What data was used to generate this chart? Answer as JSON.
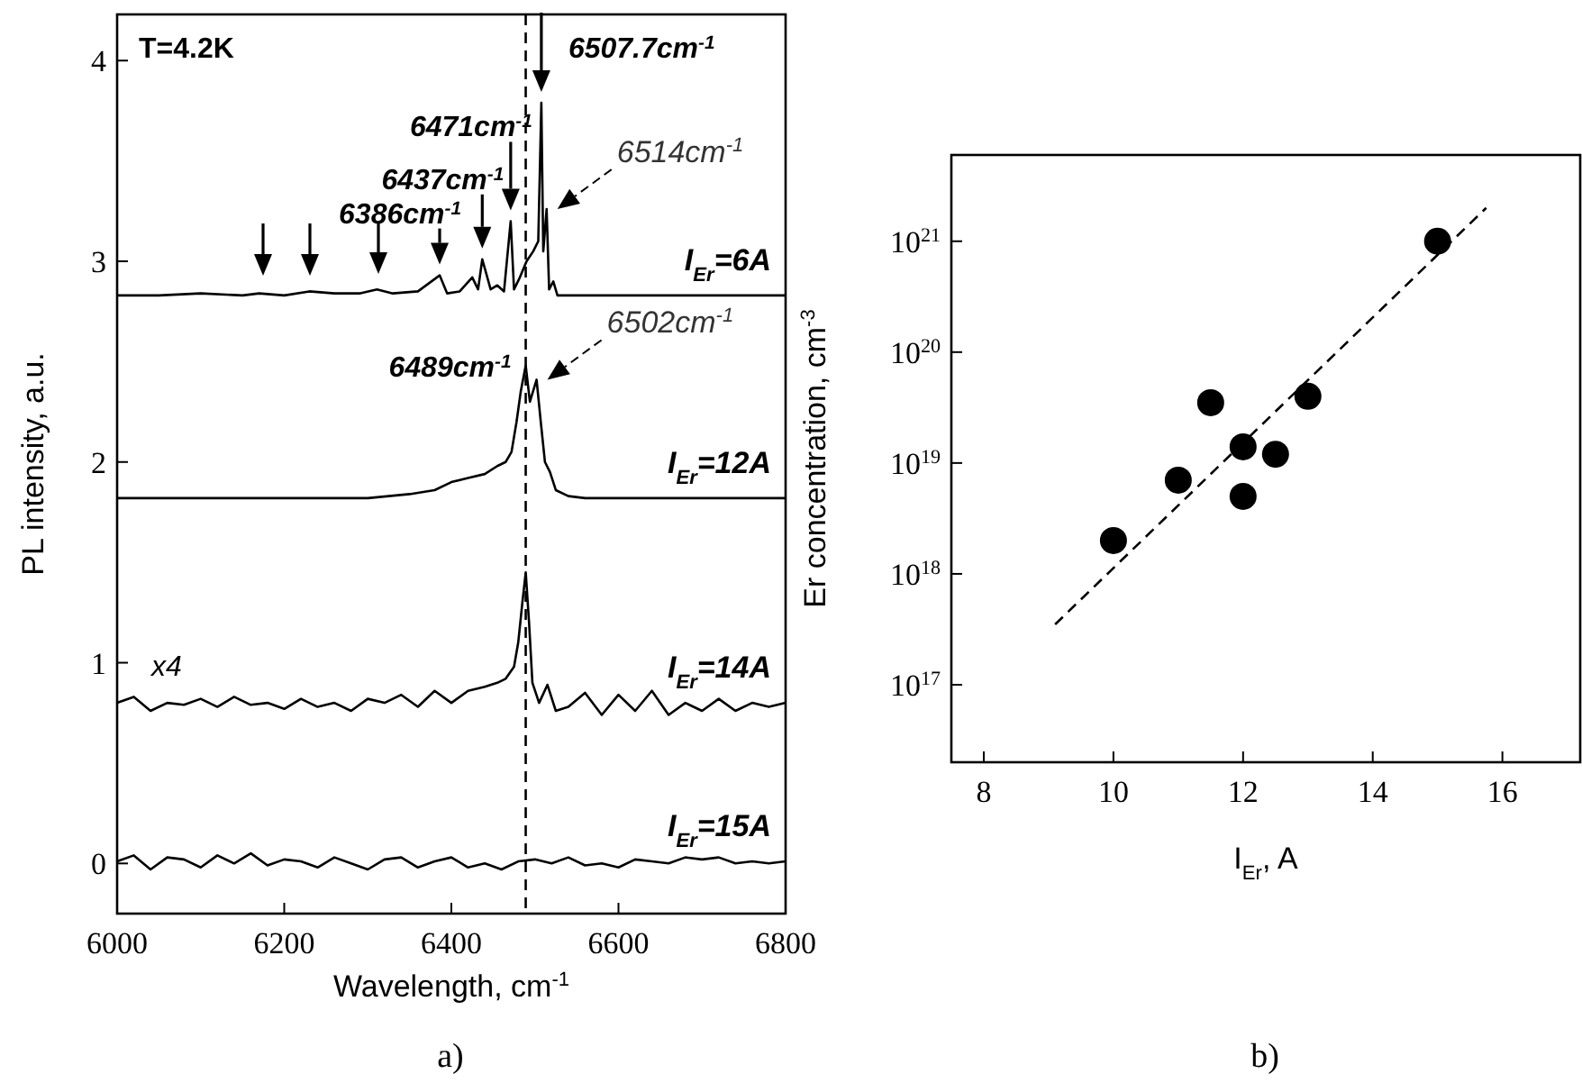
{
  "chart_data": [
    {
      "type": "line",
      "title": "a)",
      "xlabel": "Wavelength, cm$^{-1}$",
      "ylabel": "PL intensity, a.u.",
      "xlim": [
        6000,
        6800
      ],
      "ylim": [
        -0.25,
        4.23
      ],
      "xticks": [
        6000,
        6200,
        6400,
        6600,
        6800
      ],
      "yticks": [
        0,
        1,
        2,
        3,
        4
      ],
      "marker": "none",
      "line_style": "solid",
      "series": [
        {
          "name": "I$_{Er}$=6A",
          "color": "#000000",
          "x": [
            6000,
            6050,
            6100,
            6150,
            6170,
            6200,
            6230,
            6260,
            6290,
            6311,
            6330,
            6360,
            6386,
            6395,
            6410,
            6425,
            6432,
            6437,
            6447,
            6455,
            6463,
            6471,
            6475,
            6482,
            6490,
            6498,
            6504,
            6507.7,
            6510,
            6514,
            6517,
            6522,
            6527,
            6560,
            6600,
            6650,
            6700,
            6750,
            6800
          ],
          "values": [
            2.83,
            2.83,
            2.84,
            2.83,
            2.84,
            2.83,
            2.85,
            2.84,
            2.84,
            2.86,
            2.84,
            2.85,
            2.93,
            2.84,
            2.85,
            2.92,
            2.86,
            3.01,
            2.86,
            2.88,
            2.85,
            3.2,
            2.86,
            2.92,
            3.0,
            3.05,
            3.1,
            3.79,
            3.05,
            3.26,
            2.86,
            2.9,
            2.83,
            2.83,
            2.83,
            2.83,
            2.83,
            2.83,
            2.83
          ]
        },
        {
          "name": "I$_{Er}$=12A",
          "color": "#000000",
          "x": [
            6000,
            6050,
            6100,
            6150,
            6200,
            6250,
            6300,
            6350,
            6380,
            6400,
            6420,
            6440,
            6455,
            6465,
            6472,
            6478,
            6483,
            6489,
            6494,
            6502,
            6507,
            6512,
            6518,
            6525,
            6540,
            6560,
            6600,
            6650,
            6700,
            6750,
            6800
          ],
          "values": [
            1.82,
            1.82,
            1.82,
            1.82,
            1.82,
            1.82,
            1.82,
            1.84,
            1.86,
            1.9,
            1.92,
            1.94,
            1.98,
            2.0,
            2.05,
            2.2,
            2.35,
            2.48,
            2.3,
            2.41,
            2.2,
            2.0,
            1.95,
            1.86,
            1.83,
            1.82,
            1.82,
            1.82,
            1.82,
            1.82,
            1.82
          ]
        },
        {
          "name": "I$_{Er}$=14A",
          "color": "#000000",
          "x": [
            6000,
            6020,
            6040,
            6060,
            6080,
            6100,
            6120,
            6140,
            6160,
            6180,
            6200,
            6220,
            6240,
            6260,
            6280,
            6300,
            6320,
            6340,
            6360,
            6380,
            6400,
            6420,
            6440,
            6455,
            6465,
            6475,
            6480,
            6485,
            6489,
            6493,
            6497,
            6505,
            6515,
            6525,
            6540,
            6560,
            6580,
            6600,
            6620,
            6640,
            6660,
            6680,
            6700,
            6720,
            6740,
            6760,
            6780,
            6800
          ],
          "values": [
            0.8,
            0.83,
            0.76,
            0.8,
            0.79,
            0.82,
            0.78,
            0.83,
            0.79,
            0.8,
            0.77,
            0.82,
            0.78,
            0.8,
            0.76,
            0.82,
            0.8,
            0.84,
            0.78,
            0.86,
            0.8,
            0.86,
            0.88,
            0.9,
            0.92,
            0.98,
            1.1,
            1.3,
            1.45,
            1.2,
            0.9,
            0.8,
            0.89,
            0.76,
            0.78,
            0.85,
            0.74,
            0.84,
            0.76,
            0.86,
            0.74,
            0.8,
            0.76,
            0.82,
            0.76,
            0.8,
            0.78,
            0.8
          ]
        },
        {
          "name": "I$_{Er}$=15A",
          "color": "#000000",
          "x": [
            6000,
            6020,
            6040,
            6060,
            6080,
            6100,
            6120,
            6140,
            6160,
            6180,
            6200,
            6220,
            6240,
            6260,
            6280,
            6300,
            6320,
            6340,
            6360,
            6380,
            6400,
            6420,
            6440,
            6460,
            6480,
            6500,
            6520,
            6540,
            6560,
            6580,
            6600,
            6620,
            6640,
            6660,
            6680,
            6700,
            6720,
            6740,
            6760,
            6780,
            6800
          ],
          "values": [
            0.01,
            0.04,
            -0.03,
            0.03,
            0.02,
            -0.02,
            0.04,
            0.0,
            0.05,
            -0.01,
            0.02,
            0.01,
            -0.02,
            0.03,
            0.0,
            -0.03,
            0.02,
            0.03,
            -0.02,
            0.01,
            0.03,
            -0.02,
            0.0,
            -0.03,
            0.01,
            0.02,
            0.0,
            0.03,
            -0.01,
            0.0,
            -0.02,
            0.02,
            0.01,
            0.0,
            0.03,
            0.02,
            0.03,
            0.0,
            0.01,
            0.0,
            0.01
          ]
        }
      ],
      "ref_lines": [
        {
          "axis": "x",
          "value": 6489,
          "line_style": "dashed"
        }
      ],
      "annotations": [
        "T=4.2K",
        "x4",
        {
          "text": "6507.7cm$^{-1}$",
          "x": 6507.7,
          "y": 3.79
        },
        {
          "text": "6471cm$^{-1}$",
          "x": 6471,
          "y": 3.2
        },
        {
          "text": "6437cm$^{-1}$",
          "x": 6437,
          "y": 3.01
        },
        {
          "text": "6386cm$^{-1}$",
          "x": 6386,
          "y": 2.93
        },
        {
          "text": "6514cm$^{-1}$",
          "x": 6514,
          "y": 3.26
        },
        {
          "text": "6489cm$^{-1}$",
          "x": 6489,
          "y": 2.48
        },
        {
          "text": "6502cm$^{-1}$",
          "x": 6502,
          "y": 2.41
        }
      ]
    },
    {
      "type": "scatter",
      "title": "b)",
      "xlabel": "I$_{Er}$, A",
      "ylabel": "Er concentration, cm$^{-3}$",
      "log": "y",
      "xlim": [
        7.5,
        17.2
      ],
      "ylim": [
        2e+16,
        6e+21
      ],
      "xticks": [
        8,
        10,
        12,
        14,
        16
      ],
      "yticks": [
        {
          "value": 1e+17,
          "label": "10$^{17}$"
        },
        {
          "value": 1e+18,
          "label": "10$^{18}$"
        },
        {
          "value": 1e+19,
          "label": "10$^{19}$"
        },
        {
          "value": 1e+20,
          "label": "10$^{20}$"
        },
        {
          "value": 1e+21,
          "label": "10$^{21}$"
        }
      ],
      "marker": "circle",
      "series": [
        {
          "color": "#000000",
          "x": [
            10,
            11,
            11.5,
            12,
            12,
            12.5,
            13,
            15
          ],
          "values": [
            2e+18,
            7e+18,
            3.5e+19,
            1.4e+19,
            5e+18,
            1.2e+19,
            4e+19,
            1e+21
          ]
        },
        {
          "type": "line",
          "color": "#000000",
          "line_style": "dashed",
          "marker": "none",
          "x": [
            9.1,
            15.75
          ],
          "values": [
            3.5e+17,
            2e+21
          ]
        }
      ]
    }
  ]
}
